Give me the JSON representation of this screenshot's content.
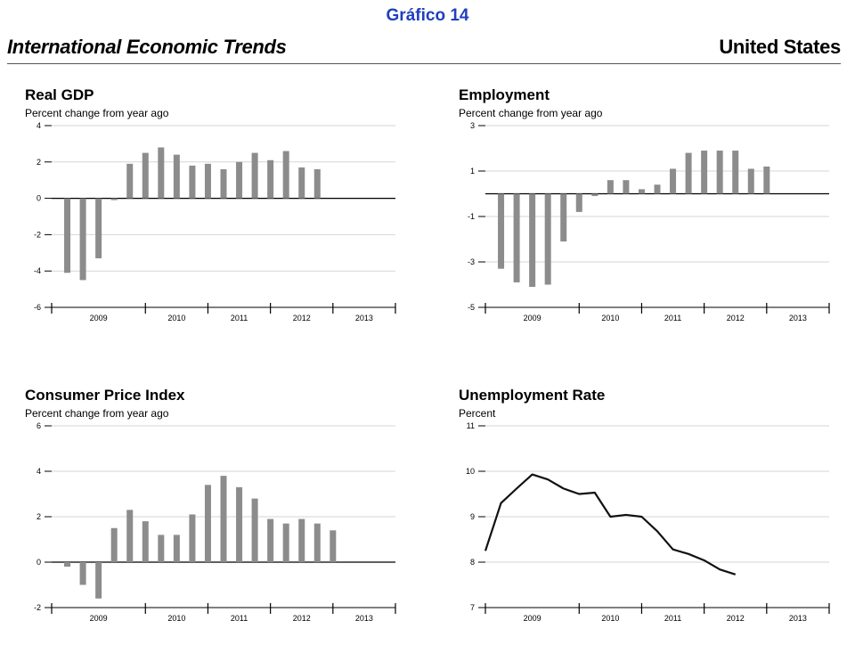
{
  "header": {
    "figure_label": "Gráfico 14",
    "figure_label_color": "#1f3fbf",
    "report_title": "International Economic Trends",
    "country": "United States"
  },
  "chart_data": [
    {
      "id": "gdp",
      "type": "bar",
      "title": "Real GDP",
      "ylabel": "Percent change from year ago",
      "ylim": [
        -6,
        4
      ],
      "yticks": [
        4,
        2,
        0,
        -2,
        -4,
        -6
      ],
      "x_years": [
        "2009",
        "2010",
        "2011",
        "2012",
        "2013"
      ],
      "x_range": [
        2008.0,
        2013.5
      ],
      "grid": true,
      "bar_color": "#8c8c8c",
      "x": [
        2008.25,
        2008.5,
        2008.75,
        2009.0,
        2009.25,
        2009.5,
        2009.75,
        2010.0,
        2010.25,
        2010.5,
        2010.75,
        2011.0,
        2011.25,
        2011.5,
        2011.75,
        2012.0,
        2012.25,
        2012.5,
        2012.75
      ],
      "values": [
        -4.1,
        -4.5,
        -3.3,
        -0.1,
        1.9,
        2.5,
        2.8,
        2.4,
        1.8,
        1.9,
        1.6,
        2.0,
        2.5,
        2.1,
        2.6,
        1.7,
        1.6,
        null,
        null
      ]
    },
    {
      "id": "employment",
      "type": "bar",
      "title": "Employment",
      "ylabel": "Percent change from year ago",
      "ylim": [
        -5,
        3
      ],
      "yticks": [
        3,
        1,
        -1,
        -3,
        -5
      ],
      "x_years": [
        "2009",
        "2010",
        "2011",
        "2012",
        "2013"
      ],
      "x_range": [
        2008.0,
        2013.5
      ],
      "grid": true,
      "bar_color": "#8c8c8c",
      "x": [
        2008.25,
        2008.5,
        2008.75,
        2009.0,
        2009.25,
        2009.5,
        2009.75,
        2010.0,
        2010.25,
        2010.5,
        2010.75,
        2011.0,
        2011.25,
        2011.5,
        2011.75,
        2012.0,
        2012.25,
        2012.5,
        2012.75
      ],
      "values": [
        -3.3,
        -3.9,
        -4.1,
        -4.0,
        -2.1,
        -0.8,
        -0.1,
        0.6,
        0.6,
        0.2,
        0.4,
        1.1,
        1.8,
        1.9,
        1.9,
        1.9,
        1.1,
        1.2,
        null
      ]
    },
    {
      "id": "cpi",
      "type": "bar",
      "title": "Consumer Price Index",
      "ylabel": "Percent change from year ago",
      "ylim": [
        -2,
        6
      ],
      "yticks": [
        6,
        4,
        2,
        0,
        -2
      ],
      "x_years": [
        "2009",
        "2010",
        "2011",
        "2012",
        "2013"
      ],
      "x_range": [
        2008.0,
        2013.5
      ],
      "grid": true,
      "bar_color": "#8c8c8c",
      "x": [
        2008.25,
        2008.5,
        2008.75,
        2009.0,
        2009.25,
        2009.5,
        2009.75,
        2010.0,
        2010.25,
        2010.5,
        2010.75,
        2011.0,
        2011.25,
        2011.5,
        2011.75,
        2012.0,
        2012.25,
        2012.5,
        2012.75
      ],
      "values": [
        -0.2,
        -1.0,
        -1.6,
        1.5,
        2.3,
        1.8,
        1.2,
        1.2,
        2.1,
        3.4,
        3.8,
        3.3,
        2.8,
        1.9,
        1.7,
        1.9,
        1.7,
        1.4,
        null
      ]
    },
    {
      "id": "unemployment",
      "type": "line",
      "title": "Unemployment Rate",
      "ylabel": "Percent",
      "ylim": [
        7,
        11
      ],
      "yticks": [
        11,
        10,
        9,
        8,
        7
      ],
      "x_years": [
        "2009",
        "2010",
        "2011",
        "2012",
        "2013"
      ],
      "x_range": [
        2008.0,
        2013.5
      ],
      "grid": true,
      "line_color": "#111111",
      "x": [
        2008.0,
        2008.25,
        2008.5,
        2008.75,
        2009.0,
        2009.25,
        2009.5,
        2009.75,
        2010.0,
        2010.25,
        2010.5,
        2010.75,
        2011.0,
        2011.25,
        2011.5,
        2011.75,
        2012.0,
        2012.25
      ],
      "values": [
        8.25,
        9.3,
        9.62,
        9.93,
        9.82,
        9.62,
        9.5,
        9.53,
        9.0,
        9.04,
        9.0,
        8.68,
        8.28,
        8.18,
        8.04,
        7.84,
        7.73,
        null
      ]
    }
  ]
}
